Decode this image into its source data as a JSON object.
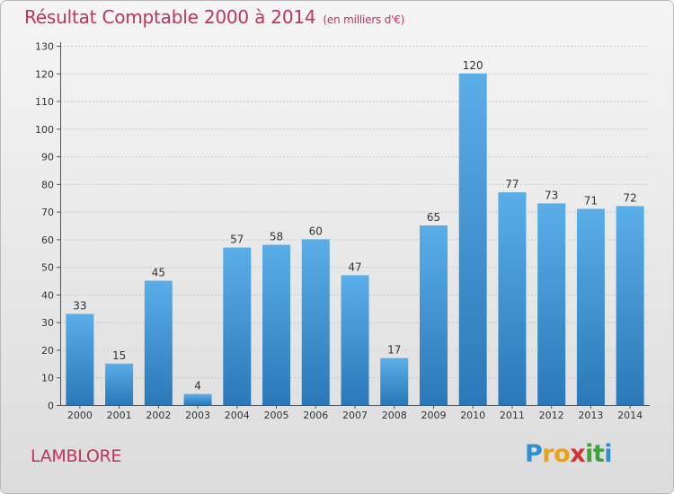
{
  "title": "Résultat Comptable 2000 à 2014",
  "unit_note": "(en milliers d'€)",
  "place": "LAMBLORE",
  "logo": {
    "text": "Proxiti",
    "letters": [
      "P",
      "r",
      "o",
      "x",
      "i",
      "t",
      "i"
    ],
    "colors": [
      "#2e8fd3",
      "#e8a21a",
      "#e8a21a",
      "#d2352f",
      "#3fa33a",
      "#3fa33a",
      "#2e8fd3"
    ]
  },
  "colors": {
    "title": "#c2345a",
    "bar_top": "#5aaee8",
    "bar_bottom": "#2a78b8"
  },
  "chart_data": {
    "type": "bar",
    "title": "Résultat Comptable 2000 à 2014",
    "subtitle": "(en milliers d'€)",
    "xlabel": "",
    "ylabel": "",
    "ylim": [
      0,
      130
    ],
    "yticks": [
      0,
      10,
      20,
      30,
      40,
      50,
      60,
      70,
      80,
      90,
      100,
      110,
      120,
      130
    ],
    "grid": true,
    "categories": [
      "2000",
      "2001",
      "2002",
      "2003",
      "2004",
      "2005",
      "2006",
      "2007",
      "2008",
      "2009",
      "2010",
      "2011",
      "2012",
      "2013",
      "2014"
    ],
    "values": [
      33,
      15,
      45,
      4,
      57,
      58,
      60,
      47,
      17,
      65,
      120,
      77,
      73,
      71,
      72
    ]
  }
}
